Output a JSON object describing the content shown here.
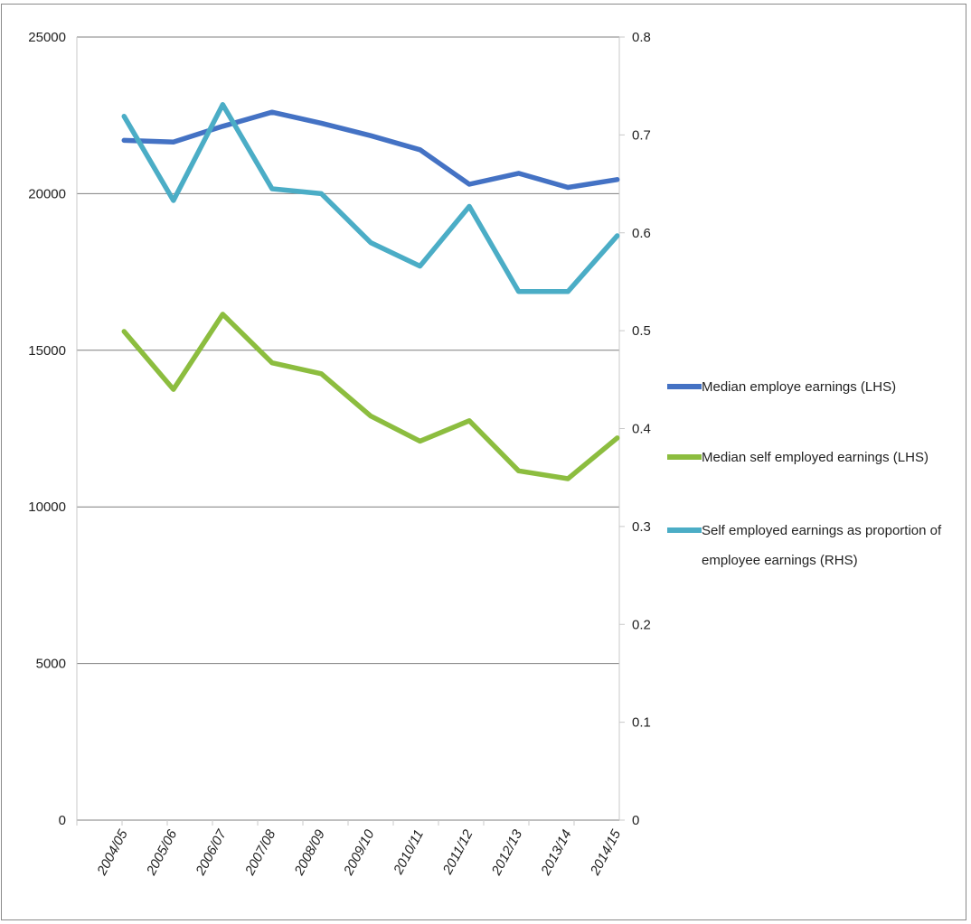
{
  "chart_data": {
    "type": "line",
    "categories": [
      "2004/05",
      "2005/06",
      "2006/07",
      "2007/08",
      "2008/09",
      "2009/10",
      "2010/11",
      "2011/12",
      "2012/13",
      "2013/14",
      "2014/15"
    ],
    "left_axis": {
      "ylim": [
        0,
        25000
      ],
      "ticks": [
        "0",
        "5000",
        "10000",
        "15000",
        "20000",
        "25000"
      ]
    },
    "right_axis": {
      "ylim": [
        0,
        0.8
      ],
      "ticks": [
        "0",
        "0.1",
        "0.2",
        "0.3",
        "0.4",
        "0.5",
        "0.6",
        "0.7",
        "0.8"
      ]
    },
    "grid": true,
    "legend_position": "right",
    "series": [
      {
        "name": "Median employe earnings (LHS)",
        "axis": "left",
        "color": "#4472c4",
        "values": [
          21700,
          21650,
          22150,
          22600,
          22250,
          21850,
          21400,
          20300,
          20650,
          20200,
          20450
        ]
      },
      {
        "name": "Median self employed earnings (LHS)",
        "axis": "left",
        "color": "#8cbd3f",
        "values": [
          15600,
          13750,
          16150,
          14600,
          14250,
          12900,
          12100,
          12750,
          11150,
          10900,
          12200
        ]
      },
      {
        "name": "Self employed earnings as proportion of employee earnings (RHS)",
        "name_lines": [
          "Self employed earnings as proportion of",
          "employee earnings (RHS)"
        ],
        "axis": "right",
        "color": "#4badc6",
        "values": [
          0.719,
          0.633,
          0.731,
          0.645,
          0.64,
          0.59,
          0.566,
          0.627,
          0.54,
          0.54,
          0.597
        ]
      }
    ]
  }
}
